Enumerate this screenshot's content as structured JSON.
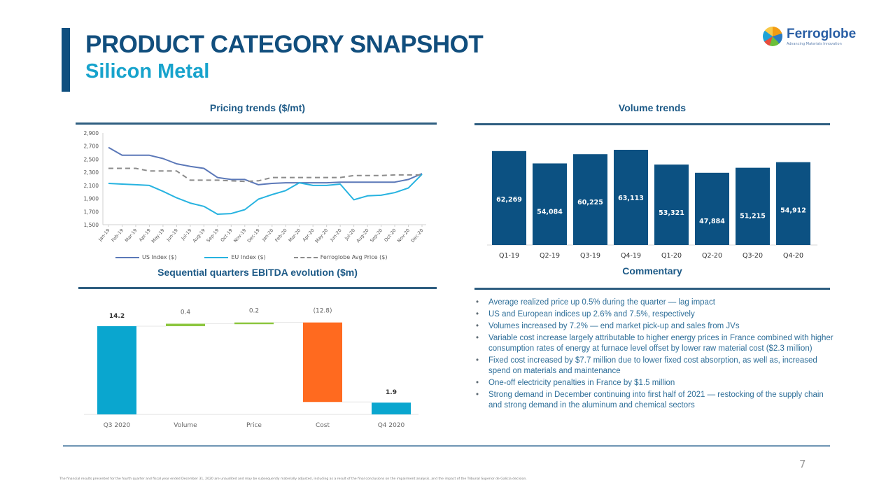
{
  "header": {
    "title": "PRODUCT CATEGORY SNAPSHOT",
    "subtitle": "Silicon Metal",
    "logo": {
      "name": "Ferroglobe",
      "tagline": "Advancing Materials Innovation",
      "icon": "globe-logo-icon"
    }
  },
  "colors": {
    "brand_dark": "#114e7d",
    "brand_light": "#17a3cc",
    "us_index": "#5b78b8",
    "eu_index": "#27b3e0",
    "ferroglobe_avg": "#8c8c8c",
    "volume_bar": "#0c5182",
    "waterfall_total": "#0aa6cf",
    "waterfall_positive": "#8cc63f",
    "waterfall_negative": "#ff6a1f"
  },
  "sections": {
    "pricing_title": "Pricing trends ($/mt)",
    "volume_title": "Volume trends",
    "ebitda_title": "Sequential quarters EBITDA evolution ($m)",
    "commentary_title": "Commentary"
  },
  "chart_data": [
    {
      "type": "line",
      "title": "Pricing trends ($/mt)",
      "xlabel": "",
      "ylabel": "",
      "ylim": [
        1500,
        2900
      ],
      "yticks": [
        "1,500",
        "1,700",
        "1,900",
        "2,100",
        "2,300",
        "2,500",
        "2,700",
        "2,900"
      ],
      "ytick_values": [
        1500,
        1700,
        1900,
        2100,
        2300,
        2500,
        2700,
        2900
      ],
      "grid": false,
      "legend_position": "bottom",
      "x": [
        "Jan-19",
        "Feb-19",
        "Mar-19",
        "Apr-19",
        "May-19",
        "Jun-19",
        "Jul-19",
        "Aug-19",
        "Sep-19",
        "Oct-19",
        "Nov-19",
        "Dec-19",
        "Jan-20",
        "Feb-20",
        "Mar-20",
        "Apr-20",
        "May-20",
        "Jun-20",
        "Jul-20",
        "Aug-20",
        "Sep-20",
        "Oct-20",
        "Nov-20",
        "Dec-20"
      ],
      "series": [
        {
          "name": "US Index ($)",
          "style": "solid",
          "values": [
            2680,
            2560,
            2560,
            2560,
            2510,
            2430,
            2390,
            2360,
            2220,
            2190,
            2190,
            2110,
            2130,
            2140,
            2140,
            2140,
            2140,
            2150,
            2150,
            2150,
            2150,
            2150,
            2190,
            2280
          ]
        },
        {
          "name": "EU Index ($)",
          "style": "solid",
          "values": [
            2130,
            2120,
            2110,
            2100,
            2010,
            1910,
            1830,
            1780,
            1660,
            1670,
            1730,
            1890,
            1960,
            2020,
            2140,
            2100,
            2100,
            2120,
            1880,
            1940,
            1950,
            1990,
            2060,
            2270
          ]
        },
        {
          "name": "Ferroglobe Avg Price ($)",
          "style": "dashed",
          "values": [
            2360,
            2360,
            2360,
            2320,
            2320,
            2320,
            2180,
            2180,
            2180,
            2170,
            2160,
            2170,
            2220,
            2220,
            2220,
            2220,
            2220,
            2220,
            2250,
            2250,
            2250,
            2260,
            2260,
            2260
          ]
        }
      ]
    },
    {
      "type": "bar",
      "title": "Volume trends",
      "categories": [
        "Q1-19",
        "Q2-19",
        "Q3-19",
        "Q4-19",
        "Q1-20",
        "Q2-20",
        "Q3-20",
        "Q4-20"
      ],
      "values": [
        62269,
        54084,
        60225,
        63113,
        53321,
        47884,
        51215,
        54912
      ],
      "labels": [
        "62,269",
        "54,084",
        "60,225",
        "63,113",
        "53,321",
        "47,884",
        "51,215",
        "54,912"
      ],
      "xlabel": "",
      "ylabel": "",
      "ylim": [
        0,
        63113
      ],
      "grid": false
    },
    {
      "type": "bar",
      "subtype": "waterfall",
      "title": "Sequential quarters EBITDA evolution ($m)",
      "categories": [
        "Q3 2020",
        "Volume",
        "Price",
        "Cost",
        "Q4 2020"
      ],
      "values": [
        14.2,
        0.4,
        0.2,
        -12.8,
        1.9
      ],
      "kinds": [
        "total",
        "delta",
        "delta",
        "delta",
        "total"
      ],
      "labels": [
        "14.2",
        "0.4",
        "0.2",
        "(12.8)",
        "1.9"
      ],
      "xlabel": "",
      "ylabel": "",
      "ylim": [
        0,
        14.8
      ],
      "grid": false
    }
  ],
  "commentary": [
    "Average realized price up 0.5% during the quarter — lag impact",
    "US and European indices up 2.6% and 7.5%, respectively",
    "Volumes increased by 7.2% — end market pick-up and sales from JVs",
    "Variable cost increase largely attributable to higher energy prices in France combined with  higher consumption rates of energy at furnace level offset by lower raw material cost ($2.3 million)",
    "Fixed cost increased by $7.7 million due to lower fixed cost absorption, as well as, increased spend on materials and maintenance",
    "One-off electricity penalties in France by  $1.5 million",
    "Strong demand in December continuing into first half of 2021 — restocking of the supply chain and strong demand in the aluminum and chemical sectors"
  ],
  "footer": {
    "footnote": "The financial results presented for the fourth quarter and fiscal year ended December 31, 2020 are unaudited and may be subsequently materially adjusted, including as a result of the final conclusions on the impairment analysis, and the impact of the Tribunal Superior de Galicia decision.",
    "page_number": "7"
  }
}
